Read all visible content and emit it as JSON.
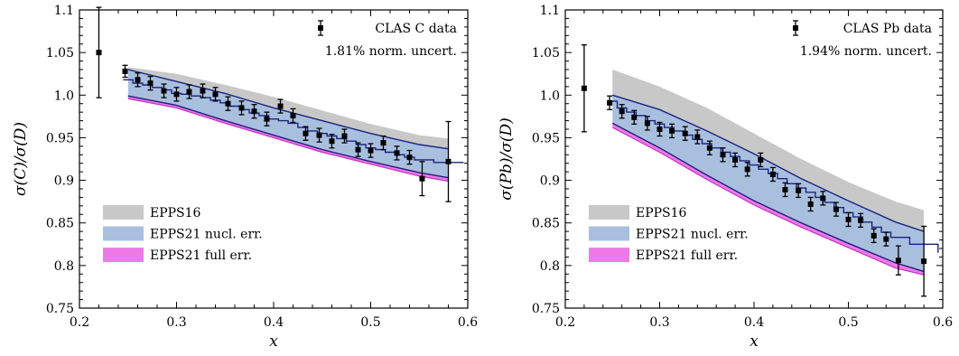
{
  "chart_data": [
    {
      "type": "line",
      "ylabel": "σ(C)/σ(D)",
      "xlabel": "x",
      "xlim": [
        0.2,
        0.6
      ],
      "ylim": [
        0.75,
        1.1
      ],
      "xticks": [
        "0.2",
        "0.3",
        "0.4",
        "0.5",
        "0.6"
      ],
      "yticks": [
        "0.75",
        "0.8",
        "0.85",
        "0.9",
        "0.95",
        "1.0",
        "1.05",
        "1.1"
      ],
      "data_legend": "CLAS C data",
      "norm_uncert": "1.81% norm. uncert.",
      "legend_position": "bottom-left",
      "bands": [
        {
          "name": "EPPS16",
          "color": "#c8c8c8",
          "x": [
            0.25,
            0.3,
            0.35,
            0.4,
            0.45,
            0.5,
            0.55,
            0.58
          ],
          "lower": [
            1.018,
            1.008,
            0.992,
            0.975,
            0.962,
            0.945,
            0.935,
            0.93
          ],
          "upper": [
            1.033,
            1.025,
            1.012,
            0.998,
            0.982,
            0.966,
            0.953,
            0.949
          ]
        },
        {
          "name": "EPPS21 nucl. err.",
          "color": "#a9bfde",
          "x": [
            0.25,
            0.3,
            0.35,
            0.4,
            0.45,
            0.5,
            0.55,
            0.58
          ],
          "lower": [
            0.999,
            0.988,
            0.97,
            0.953,
            0.936,
            0.922,
            0.909,
            0.903
          ],
          "upper": [
            1.03,
            1.016,
            1.002,
            0.985,
            0.97,
            0.955,
            0.942,
            0.937
          ]
        },
        {
          "name": "EPPS21 full err.",
          "color": "#ee7ae8",
          "x": [
            0.25,
            0.3,
            0.35,
            0.4,
            0.45,
            0.5,
            0.55,
            0.58
          ],
          "lower": [
            0.996,
            0.985,
            0.967,
            0.95,
            0.933,
            0.919,
            0.905,
            0.899
          ],
          "upper": [
            1.0,
            0.989,
            0.971,
            0.954,
            0.937,
            0.923,
            0.91,
            0.904
          ]
        }
      ],
      "step_center": {
        "x": [
          0.245,
          0.255,
          0.265,
          0.275,
          0.285,
          0.295,
          0.305,
          0.315,
          0.325,
          0.335,
          0.345,
          0.355,
          0.365,
          0.375,
          0.385,
          0.395,
          0.405,
          0.415,
          0.425,
          0.435,
          0.445,
          0.455,
          0.465,
          0.475,
          0.485,
          0.495,
          0.505,
          0.515,
          0.525,
          0.535,
          0.545,
          0.565,
          0.595
        ],
        "y": [
          1.018,
          1.014,
          1.012,
          1.009,
          1.006,
          1.002,
          1.001,
          0.999,
          0.997,
          0.994,
          0.991,
          0.987,
          0.983,
          0.979,
          0.976,
          0.972,
          0.97,
          0.967,
          0.962,
          0.958,
          0.955,
          0.952,
          0.949,
          0.946,
          0.942,
          0.938,
          0.936,
          0.933,
          0.93,
          0.927,
          0.924,
          0.921,
          0.92
        ]
      },
      "data": {
        "x": [
          0.22,
          0.247,
          0.26,
          0.273,
          0.287,
          0.3,
          0.313,
          0.327,
          0.34,
          0.353,
          0.367,
          0.38,
          0.393,
          0.407,
          0.42,
          0.433,
          0.447,
          0.46,
          0.473,
          0.487,
          0.5,
          0.513,
          0.527,
          0.54,
          0.553,
          0.58
        ],
        "y": [
          1.05,
          1.028,
          1.018,
          1.014,
          1.005,
          1.001,
          1.004,
          1.005,
          1.001,
          0.99,
          0.985,
          0.981,
          0.972,
          0.987,
          0.976,
          0.955,
          0.953,
          0.946,
          0.952,
          0.936,
          0.935,
          0.944,
          0.932,
          0.927,
          0.902,
          0.922
        ],
        "err": [
          0.053,
          0.007,
          0.008,
          0.008,
          0.008,
          0.008,
          0.008,
          0.008,
          0.008,
          0.008,
          0.008,
          0.008,
          0.008,
          0.008,
          0.008,
          0.008,
          0.008,
          0.008,
          0.008,
          0.008,
          0.008,
          0.008,
          0.008,
          0.008,
          0.02,
          0.047
        ]
      }
    },
    {
      "type": "line",
      "ylabel": "σ(Pb)/σ(D)",
      "xlabel": "x",
      "xlim": [
        0.2,
        0.6
      ],
      "ylim": [
        0.75,
        1.1
      ],
      "xticks": [
        "0.2",
        "0.3",
        "0.4",
        "0.5",
        "0.6"
      ],
      "yticks": [
        "0.75",
        "0.8",
        "0.85",
        "0.9",
        "0.95",
        "1.0",
        "1.05",
        "1.1"
      ],
      "data_legend": "CLAS Pb data",
      "norm_uncert": "1.94% norm. uncert.",
      "legend_position": "bottom-left",
      "bands": [
        {
          "name": "EPPS16",
          "color": "#c8c8c8",
          "x": [
            0.25,
            0.3,
            0.35,
            0.4,
            0.45,
            0.5,
            0.55,
            0.58
          ],
          "lower": [
            0.982,
            0.957,
            0.93,
            0.905,
            0.88,
            0.86,
            0.838,
            0.831
          ],
          "upper": [
            1.03,
            1.01,
            0.985,
            0.955,
            0.925,
            0.898,
            0.875,
            0.865
          ]
        },
        {
          "name": "EPPS21 nucl. err.",
          "color": "#a9bfde",
          "x": [
            0.25,
            0.3,
            0.35,
            0.4,
            0.45,
            0.5,
            0.55,
            0.58
          ],
          "lower": [
            0.967,
            0.938,
            0.906,
            0.876,
            0.85,
            0.826,
            0.803,
            0.793
          ],
          "upper": [
            1.0,
            0.983,
            0.958,
            0.931,
            0.902,
            0.876,
            0.851,
            0.84
          ]
        },
        {
          "name": "EPPS21 full err.",
          "color": "#ee7ae8",
          "x": [
            0.25,
            0.3,
            0.35,
            0.4,
            0.45,
            0.5,
            0.55,
            0.58
          ],
          "lower": [
            0.962,
            0.933,
            0.901,
            0.871,
            0.845,
            0.821,
            0.797,
            0.789
          ],
          "upper": [
            0.968,
            0.939,
            0.907,
            0.877,
            0.851,
            0.827,
            0.804,
            0.794
          ]
        }
      ],
      "step_center": {
        "x": [
          0.245,
          0.255,
          0.265,
          0.275,
          0.285,
          0.295,
          0.305,
          0.315,
          0.325,
          0.335,
          0.345,
          0.355,
          0.365,
          0.375,
          0.385,
          0.395,
          0.405,
          0.415,
          0.425,
          0.435,
          0.445,
          0.455,
          0.465,
          0.475,
          0.485,
          0.495,
          0.505,
          0.515,
          0.525,
          0.535,
          0.545,
          0.565,
          0.595
        ],
        "y": [
          0.993,
          0.985,
          0.98,
          0.976,
          0.97,
          0.966,
          0.962,
          0.958,
          0.953,
          0.948,
          0.943,
          0.938,
          0.933,
          0.928,
          0.923,
          0.918,
          0.913,
          0.908,
          0.902,
          0.896,
          0.891,
          0.886,
          0.88,
          0.874,
          0.868,
          0.862,
          0.857,
          0.851,
          0.845,
          0.839,
          0.833,
          0.825,
          0.815
        ]
      },
      "data": {
        "x": [
          0.22,
          0.247,
          0.26,
          0.273,
          0.287,
          0.3,
          0.313,
          0.327,
          0.34,
          0.353,
          0.367,
          0.38,
          0.393,
          0.407,
          0.42,
          0.433,
          0.447,
          0.46,
          0.473,
          0.487,
          0.5,
          0.513,
          0.527,
          0.54,
          0.553,
          0.58
        ],
        "y": [
          1.008,
          0.991,
          0.981,
          0.974,
          0.967,
          0.96,
          0.958,
          0.955,
          0.951,
          0.938,
          0.93,
          0.924,
          0.913,
          0.924,
          0.907,
          0.889,
          0.888,
          0.872,
          0.879,
          0.866,
          0.854,
          0.853,
          0.835,
          0.831,
          0.806,
          0.805
        ],
        "err": [
          0.051,
          0.008,
          0.008,
          0.008,
          0.008,
          0.008,
          0.008,
          0.008,
          0.008,
          0.008,
          0.008,
          0.008,
          0.008,
          0.008,
          0.008,
          0.008,
          0.008,
          0.008,
          0.008,
          0.008,
          0.008,
          0.008,
          0.008,
          0.008,
          0.017,
          0.041
        ]
      }
    }
  ]
}
